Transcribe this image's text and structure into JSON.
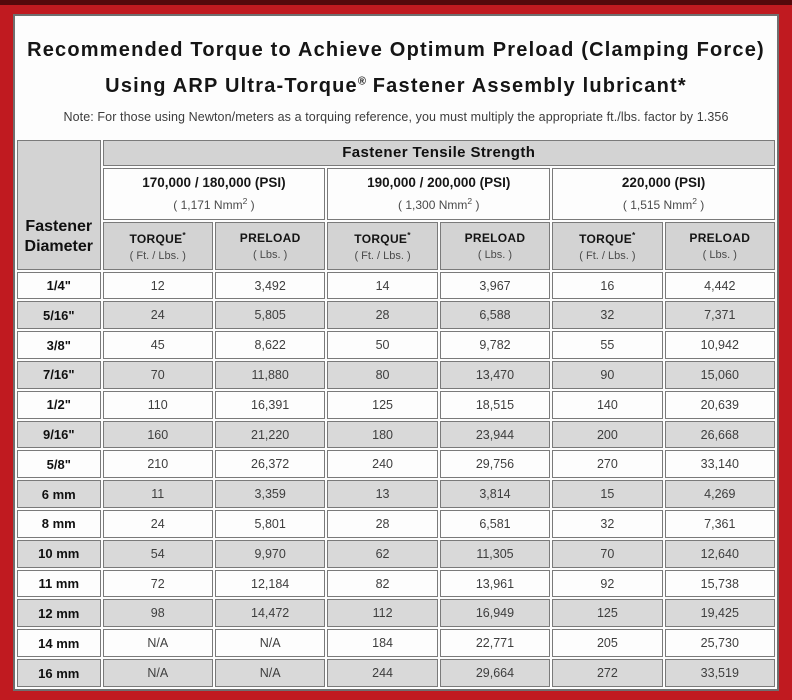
{
  "colors": {
    "frame_red": "#c01a20",
    "frame_top_dark": "#55090c",
    "header_gray": "#d3d3d3",
    "row_alt_gray": "#d9d9d9",
    "cell_border_gray": "#7a7a7a"
  },
  "header": {
    "title_line1": "Recommended Torque to Achieve Optimum Preload (Clamping Force)",
    "title_line2_pre": "Using ARP Ultra-Torque",
    "title_line2_sup": "®",
    "title_line2_post": " Fastener Assembly lubricant*",
    "note": "Note: For those using Newton/meters as a torquing reference, you must multiply the appropriate ft./lbs. factor by 1.356"
  },
  "table": {
    "corner_label_line1": "Fastener",
    "corner_label_line2": "Diameter",
    "tensile_strength_header": "Fastener Tensile Strength",
    "strength_groups": [
      {
        "psi": "170,000 / 180,000 (PSI)",
        "nmm_pre": "( 1,171 Nmm",
        "nmm_sup": "2",
        "nmm_post": " )"
      },
      {
        "psi": "190,000 / 200,000 (PSI)",
        "nmm_pre": "( 1,300 Nmm",
        "nmm_sup": "2",
        "nmm_post": " )"
      },
      {
        "psi": "220,000 (PSI)",
        "nmm_pre": "( 1,515 Nmm",
        "nmm_sup": "2",
        "nmm_post": " )"
      }
    ],
    "sub_headers": {
      "torque_label": "TORQUE",
      "torque_sup": "*",
      "torque_unit": "( Ft. / Lbs. )",
      "preload_label": "PRELOAD",
      "preload_unit": "( Lbs. )"
    },
    "rows": [
      {
        "diameter": "1/4\"",
        "values": [
          "12",
          "3,492",
          "14",
          "3,967",
          "16",
          "4,442"
        ]
      },
      {
        "diameter": "5/16\"",
        "values": [
          "24",
          "5,805",
          "28",
          "6,588",
          "32",
          "7,371"
        ]
      },
      {
        "diameter": "3/8\"",
        "values": [
          "45",
          "8,622",
          "50",
          "9,782",
          "55",
          "10,942"
        ]
      },
      {
        "diameter": "7/16\"",
        "values": [
          "70",
          "11,880",
          "80",
          "13,470",
          "90",
          "15,060"
        ]
      },
      {
        "diameter": "1/2\"",
        "values": [
          "110",
          "16,391",
          "125",
          "18,515",
          "140",
          "20,639"
        ]
      },
      {
        "diameter": "9/16\"",
        "values": [
          "160",
          "21,220",
          "180",
          "23,944",
          "200",
          "26,668"
        ]
      },
      {
        "diameter": "5/8\"",
        "values": [
          "210",
          "26,372",
          "240",
          "29,756",
          "270",
          "33,140"
        ]
      },
      {
        "diameter": "6 mm",
        "values": [
          "11",
          "3,359",
          "13",
          "3,814",
          "15",
          "4,269"
        ]
      },
      {
        "diameter": "8 mm",
        "values": [
          "24",
          "5,801",
          "28",
          "6,581",
          "32",
          "7,361"
        ]
      },
      {
        "diameter": "10 mm",
        "values": [
          "54",
          "9,970",
          "62",
          "11,305",
          "70",
          "12,640"
        ]
      },
      {
        "diameter": "11 mm",
        "values": [
          "72",
          "12,184",
          "82",
          "13,961",
          "92",
          "15,738"
        ]
      },
      {
        "diameter": "12 mm",
        "values": [
          "98",
          "14,472",
          "112",
          "16,949",
          "125",
          "19,425"
        ]
      },
      {
        "diameter": "14 mm",
        "values": [
          "N/A",
          "N/A",
          "184",
          "22,771",
          "205",
          "25,730"
        ]
      },
      {
        "diameter": "16 mm",
        "values": [
          "N/A",
          "N/A",
          "244",
          "29,664",
          "272",
          "33,519"
        ]
      }
    ]
  }
}
